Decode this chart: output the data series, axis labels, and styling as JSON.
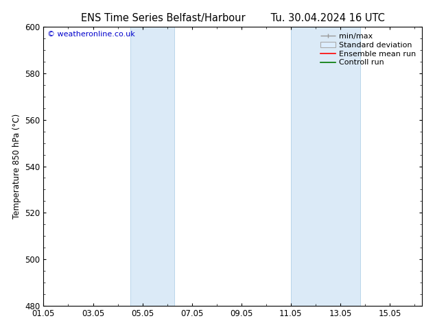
{
  "title_left": "ENS Time Series Belfast/Harbour",
  "title_right": "Tu. 30.04.2024 16 UTC",
  "ylabel": "Temperature 850 hPa (°C)",
  "ylim": [
    480,
    600
  ],
  "yticks": [
    480,
    500,
    520,
    540,
    560,
    580,
    600
  ],
  "xtick_labels": [
    "01.05",
    "03.05",
    "05.05",
    "07.05",
    "09.05",
    "11.05",
    "13.05",
    "15.05"
  ],
  "xtick_positions": [
    0,
    2,
    4,
    6,
    8,
    10,
    12,
    14
  ],
  "xlim": [
    0,
    15.3
  ],
  "shaded_regions": [
    {
      "x_start": 3.5,
      "x_end": 5.3
    },
    {
      "x_start": 10.0,
      "x_end": 12.8
    }
  ],
  "shade_color": "#dbeaf7",
  "shade_edge_color": "#b8d5ea",
  "watermark_text": "© weatheronline.co.uk",
  "watermark_color": "#0000cc",
  "bg_color": "#ffffff",
  "legend_minmax_color": "#999999",
  "legend_std_facecolor": "#ddeeff",
  "legend_std_edgecolor": "#aaaaaa",
  "legend_mean_color": "#ff0000",
  "legend_control_color": "#007700",
  "font_family": "DejaVu Sans",
  "title_fontsize": 10.5,
  "tick_fontsize": 8.5,
  "legend_fontsize": 8,
  "ylabel_fontsize": 8.5
}
